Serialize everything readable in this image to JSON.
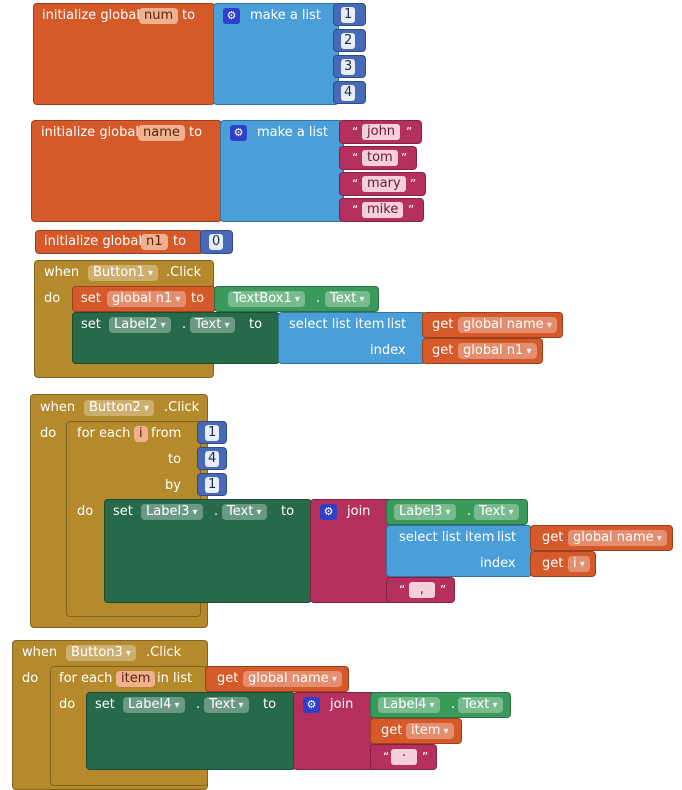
{
  "colors": {
    "variable": "#d6592a",
    "list": "#4a9fd9",
    "number": "#4669b8",
    "text": "#b5305c",
    "control": "#b48a2c",
    "setter": "#266a4a",
    "component": "#3a9a5b",
    "procedure": "#2f3fc8"
  },
  "icons": {
    "mutator": "gear-icon",
    "dropdown": "chevron-down-icon"
  },
  "kw": {
    "initialize_global": "initialize global",
    "to": "to",
    "make_a_list": "make a list",
    "when": "when",
    "click": ".Click",
    "do": "do",
    "set": "set",
    "dot": ".",
    "select_list_item": "select list item",
    "list": "list",
    "index": "index",
    "get": "get",
    "for_each": "for each",
    "from": "from",
    "by": "by",
    "join": "join",
    "in_list": "in list",
    "open_quote": "“",
    "close_quote": "”"
  },
  "block1": {
    "var_name": "num",
    "items": [
      "1",
      "2",
      "3",
      "4"
    ]
  },
  "block2": {
    "var_name": "name",
    "items": [
      "john",
      "tom",
      "mary",
      "mike"
    ]
  },
  "block3": {
    "var_name": "n1",
    "value": "0"
  },
  "block4": {
    "component": "Button1",
    "set_var": "global n1",
    "textbox": "TextBox1",
    "textbox_prop": "Text",
    "label": "Label2",
    "label_prop": "Text",
    "list_var": "global name",
    "index_var": "global n1"
  },
  "block5": {
    "component": "Button2",
    "loop_var": "i",
    "from": "1",
    "to": "4",
    "by": "1",
    "label": "Label3",
    "label_prop": "Text",
    "join_label": "Label3",
    "join_label_prop": "Text",
    "list_var": "global name",
    "index_var": "i",
    "separator": ","
  },
  "block6": {
    "component": "Button3",
    "loop_var": "item",
    "list_var": "global name",
    "label": "Label4",
    "label_prop": "Text",
    "join_label": "Label4",
    "join_label_prop": "Text",
    "get_var": "item",
    "separator": "·"
  }
}
